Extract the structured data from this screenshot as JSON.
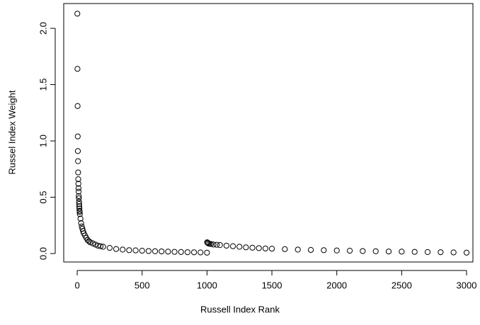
{
  "chart_data": {
    "type": "scatter",
    "xlabel": "Russell Index Rank",
    "ylabel": "Russel Index Weight",
    "x": [
      1,
      2,
      3,
      4,
      5,
      6,
      7,
      8,
      9,
      10,
      11,
      12,
      13,
      14,
      15,
      16,
      17,
      18,
      19,
      20,
      25,
      30,
      35,
      40,
      45,
      50,
      60,
      70,
      80,
      90,
      100,
      120,
      140,
      160,
      180,
      200,
      250,
      300,
      350,
      400,
      450,
      500,
      550,
      600,
      650,
      700,
      750,
      800,
      850,
      900,
      950,
      1000,
      1001,
      1005,
      1010,
      1020,
      1030,
      1050,
      1075,
      1100,
      1150,
      1200,
      1250,
      1300,
      1350,
      1400,
      1450,
      1500,
      1600,
      1700,
      1800,
      1900,
      2000,
      2100,
      2200,
      2300,
      2400,
      2500,
      2600,
      2700,
      2800,
      2900,
      3000
    ],
    "values": [
      2.13,
      1.64,
      1.31,
      1.04,
      0.91,
      0.82,
      0.72,
      0.66,
      0.62,
      0.58,
      0.55,
      0.51,
      0.49,
      0.46,
      0.44,
      0.42,
      0.4,
      0.38,
      0.37,
      0.35,
      0.31,
      0.27,
      0.24,
      0.22,
      0.2,
      0.18,
      0.16,
      0.14,
      0.12,
      0.11,
      0.1,
      0.09,
      0.08,
      0.07,
      0.065,
      0.06,
      0.05,
      0.04,
      0.035,
      0.03,
      0.028,
      0.025,
      0.022,
      0.02,
      0.019,
      0.017,
      0.015,
      0.014,
      0.012,
      0.011,
      0.01,
      0.008,
      0.1,
      0.095,
      0.09,
      0.087,
      0.085,
      0.08,
      0.078,
      0.075,
      0.07,
      0.065,
      0.06,
      0.055,
      0.052,
      0.048,
      0.045,
      0.043,
      0.039,
      0.035,
      0.032,
      0.03,
      0.027,
      0.025,
      0.022,
      0.02,
      0.018,
      0.017,
      0.015,
      0.013,
      0.012,
      0.01,
      0.008
    ],
    "color": "#000000",
    "xlim": [
      -104,
      3049
    ],
    "xticks": [
      0,
      500,
      1000,
      1500,
      2000,
      2500,
      3000
    ],
    "ylim": [
      -0.075,
      2.22
    ],
    "yticks": [
      {
        "value": 0,
        "label": "0.0"
      },
      {
        "value": 0.5,
        "label": "0.5"
      },
      {
        "value": 1,
        "label": "1.0"
      },
      {
        "value": 1.5,
        "label": "1.5"
      },
      {
        "value": 2,
        "label": "2.0"
      }
    ]
  }
}
